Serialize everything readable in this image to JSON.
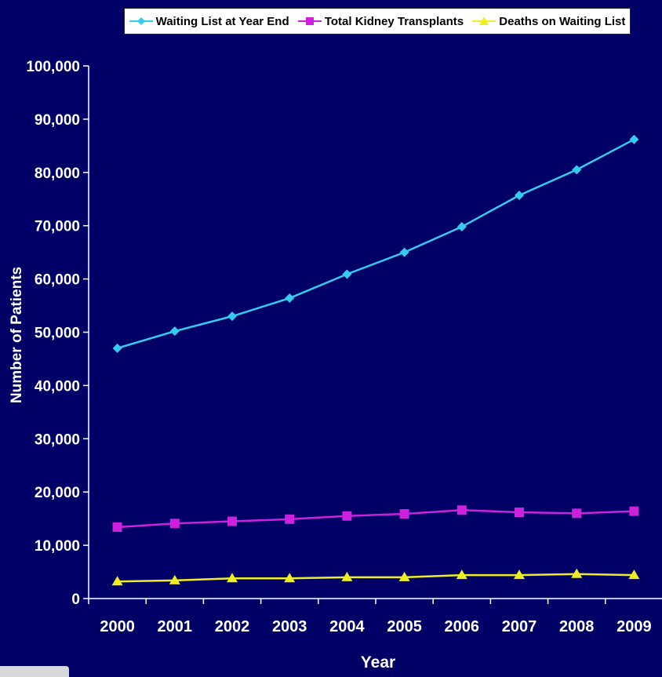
{
  "chart_data": {
    "type": "line",
    "categories": [
      "2000",
      "2001",
      "2002",
      "2003",
      "2004",
      "2005",
      "2006",
      "2007",
      "2008",
      "2009"
    ],
    "xlabel": "Year",
    "ylabel": "Number of Patients",
    "ylim": [
      0,
      100000
    ],
    "yticks": [
      "0",
      "10,000",
      "20,000",
      "30,000",
      "40,000",
      "50,000",
      "60,000",
      "70,000",
      "80,000",
      "90,000",
      "100,000"
    ],
    "grid": false,
    "legend_position": "top",
    "series": [
      {
        "name": "Waiting List at Year End",
        "color": "#33ccee",
        "marker": "diamond",
        "values": [
          47000,
          50200,
          53000,
          56400,
          60900,
          65000,
          69800,
          75700,
          80500,
          86200
        ]
      },
      {
        "name": "Total Kidney Transplants",
        "color": "#cc22dd",
        "marker": "square",
        "values": [
          13400,
          14100,
          14500,
          14900,
          15500,
          15900,
          16600,
          16200,
          16000,
          16400
        ]
      },
      {
        "name": "Deaths on Waiting List",
        "color": "#eeee22",
        "marker": "triangle",
        "values": [
          3200,
          3400,
          3800,
          3800,
          4000,
          4000,
          4400,
          4400,
          4600,
          4400
        ]
      }
    ]
  }
}
